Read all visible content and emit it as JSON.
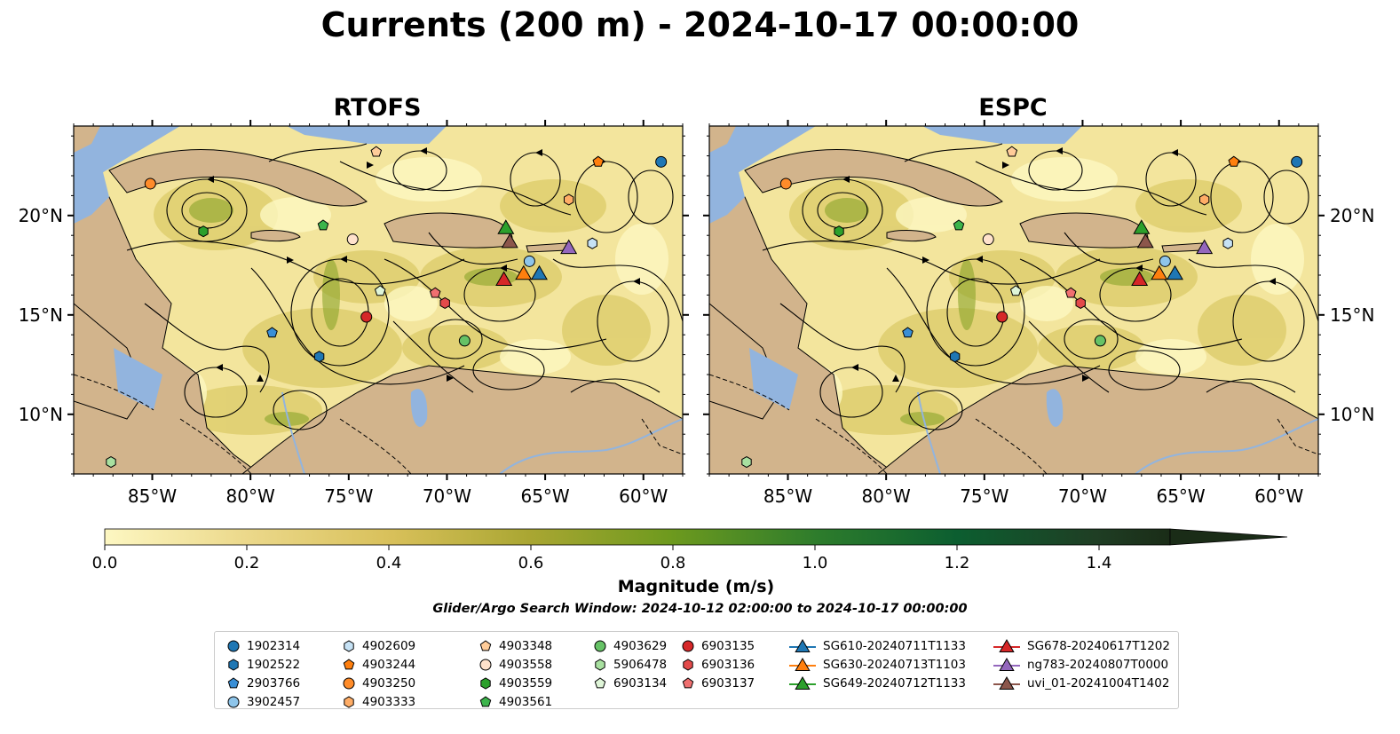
{
  "title": "Currents (200 m) - 2024-10-17 00:00:00",
  "panels": [
    {
      "title": "RTOFS"
    },
    {
      "title": "ESPC"
    }
  ],
  "axes": {
    "x_ticks": [
      "85°W",
      "80°W",
      "75°W",
      "70°W",
      "65°W",
      "60°W"
    ],
    "y_ticks": [
      "20°N",
      "15°N",
      "10°N"
    ],
    "lon_range": [
      -89,
      -58
    ],
    "lat_range": [
      7,
      24.5
    ]
  },
  "colorbar": {
    "label": "Magnitude (m/s)",
    "ticks": [
      "0.0",
      "0.2",
      "0.4",
      "0.6",
      "0.8",
      "1.0",
      "1.2",
      "1.4"
    ],
    "range": [
      0,
      1.5
    ],
    "extend": "max"
  },
  "search_window": "Glider/Argo Search Window: 2024-10-12 02:00:00 to 2024-10-17 00:00:00",
  "colors": {
    "ocean_low": "#fdf7c2",
    "ocean_high": "#1a2c17",
    "land": "#d2b48c",
    "inland_water": "#92b4de"
  },
  "legend": {
    "columns": [
      [
        {
          "label": "1902314",
          "marker": "circle",
          "color": "#1f77b4"
        },
        {
          "label": "1902522",
          "marker": "hexagon",
          "color": "#1f77b4"
        },
        {
          "label": "2903766",
          "marker": "pentagon",
          "color": "#3a8fd6"
        },
        {
          "label": "3902457",
          "marker": "circle",
          "color": "#8ec5ea"
        }
      ],
      [
        {
          "label": "4902609",
          "marker": "hexagon",
          "color": "#c6e2f5"
        },
        {
          "label": "4903244",
          "marker": "pentagon",
          "color": "#ff7f0e"
        },
        {
          "label": "4903250",
          "marker": "circle",
          "color": "#ff8c2a"
        },
        {
          "label": "4903333",
          "marker": "hexagon",
          "color": "#ffad66"
        }
      ],
      [
        {
          "label": "4903348",
          "marker": "pentagon",
          "color": "#ffcc99"
        },
        {
          "label": "4903558",
          "marker": "circle",
          "color": "#ffe2cc"
        },
        {
          "label": "4903559",
          "marker": "hexagon",
          "color": "#2ca02c"
        },
        {
          "label": "4903561",
          "marker": "pentagon",
          "color": "#3cb44b"
        }
      ],
      [
        {
          "label": "4903629",
          "marker": "circle",
          "color": "#66c266"
        },
        {
          "label": "5906478",
          "marker": "hexagon",
          "color": "#a8e0a0"
        },
        {
          "label": "6903134",
          "marker": "pentagon",
          "color": "#dff5d8"
        }
      ],
      [
        {
          "label": "6903135",
          "marker": "circle",
          "color": "#d62728"
        },
        {
          "label": "6903136",
          "marker": "hexagon",
          "color": "#e34a4a"
        },
        {
          "label": "6903137",
          "marker": "pentagon",
          "color": "#f07070"
        }
      ],
      [
        {
          "label": "SG610-20240711T1133",
          "marker": "triangle",
          "color": "#1f77b4"
        },
        {
          "label": "SG630-20240713T1103",
          "marker": "triangle",
          "color": "#ff7f0e"
        },
        {
          "label": "SG649-20240712T1133",
          "marker": "triangle",
          "color": "#2ca02c"
        }
      ],
      [
        {
          "label": "SG678-20240617T1202",
          "marker": "triangle",
          "color": "#d62728"
        },
        {
          "label": "ng783-20240807T0000",
          "marker": "triangle",
          "color": "#9467bd"
        },
        {
          "label": "uvi_01-20241004T1402",
          "marker": "triangle",
          "color": "#8c564b"
        }
      ]
    ]
  },
  "platform_positions": [
    {
      "id": "1902314",
      "lon": -59.1,
      "lat": 22.7
    },
    {
      "id": "1902522",
      "lon": -76.5,
      "lat": 12.9
    },
    {
      "id": "2903766",
      "lon": -78.9,
      "lat": 14.1
    },
    {
      "id": "3902457",
      "lon": -65.8,
      "lat": 17.7
    },
    {
      "id": "4902609",
      "lon": -62.6,
      "lat": 18.6
    },
    {
      "id": "4903244",
      "lon": -62.3,
      "lat": 22.7
    },
    {
      "id": "4903250",
      "lon": -85.1,
      "lat": 21.6
    },
    {
      "id": "4903333",
      "lon": -63.8,
      "lat": 20.8
    },
    {
      "id": "4903348",
      "lon": -73.6,
      "lat": 23.2
    },
    {
      "id": "4903558",
      "lon": -74.8,
      "lat": 18.8
    },
    {
      "id": "4903559",
      "lon": -82.4,
      "lat": 19.2
    },
    {
      "id": "4903561",
      "lon": -76.3,
      "lat": 19.5
    },
    {
      "id": "4903629",
      "lon": -69.1,
      "lat": 13.7
    },
    {
      "id": "5906478",
      "lon": -87.1,
      "lat": 7.6
    },
    {
      "id": "6903134",
      "lon": -73.4,
      "lat": 16.2
    },
    {
      "id": "6903135",
      "lon": -74.1,
      "lat": 14.9
    },
    {
      "id": "6903136",
      "lon": -70.1,
      "lat": 15.6
    },
    {
      "id": "6903137",
      "lon": -70.6,
      "lat": 16.1
    },
    {
      "id": "SG610-20240711T1133",
      "lon": -65.3,
      "lat": 17.1
    },
    {
      "id": "SG630-20240713T1103",
      "lon": -66.1,
      "lat": 17.1
    },
    {
      "id": "SG649-20240712T1133",
      "lon": -67.0,
      "lat": 19.4
    },
    {
      "id": "SG678-20240617T1202",
      "lon": -67.1,
      "lat": 16.8
    },
    {
      "id": "ng783-20240807T0000",
      "lon": -63.8,
      "lat": 18.4
    },
    {
      "id": "uvi_01-20241004T1402",
      "lon": -66.8,
      "lat": 18.7
    }
  ]
}
